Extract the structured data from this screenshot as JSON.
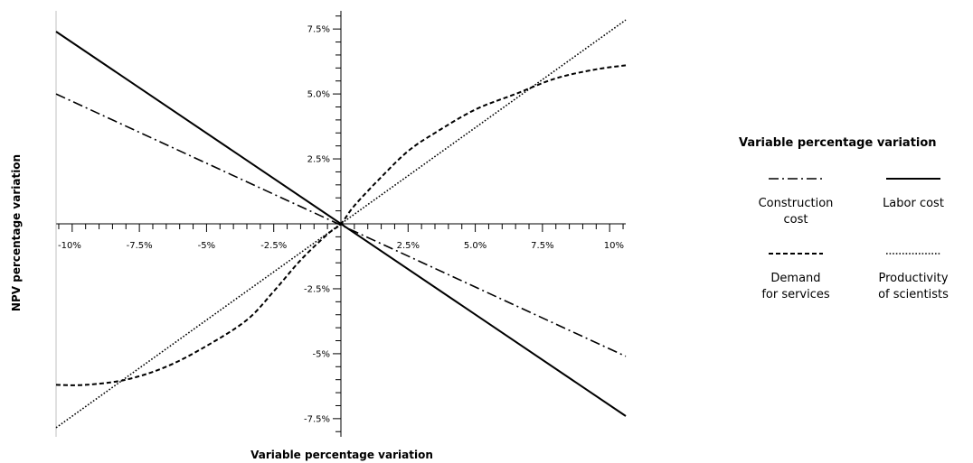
{
  "chart_data": {
    "type": "line",
    "xlabel": "Variable percentage variation",
    "ylabel": "NPV percentage variation",
    "xlim": [
      -10.6,
      10.6
    ],
    "ylim": [
      -8.2,
      8.2
    ],
    "grid": false,
    "legend_position": "right",
    "x_ticks": {
      "values": [
        -10,
        -7.5,
        -5,
        -2.5,
        2.5,
        5,
        7.5,
        10
      ],
      "labels": [
        "-10%",
        "-7.5%",
        "-5%",
        "-2.5%",
        "2.5%",
        "5.0%",
        "7.5%",
        "10%"
      ]
    },
    "y_ticks": {
      "values": [
        7.5,
        5,
        2.5,
        -2.5,
        -5,
        -7.5
      ],
      "labels": [
        "7.5%",
        "5.0%",
        "2.5%",
        "-2.5%",
        "-5%",
        "-7.5%"
      ]
    },
    "legend": {
      "title": "Variable percentage variation"
    },
    "series": [
      {
        "name": "Construction cost",
        "style": "dashdot",
        "x": [
          -10.6,
          10.6
        ],
        "y": [
          5.0,
          -5.1
        ]
      },
      {
        "name": "Labor cost",
        "style": "solid",
        "x": [
          -10.6,
          10.6
        ],
        "y": [
          7.4,
          -7.4
        ]
      },
      {
        "name": "Demand for services",
        "style": "dashed",
        "x": [
          -10.6,
          -9.5,
          -8.0,
          -6.5,
          -5.0,
          -3.5,
          -2.5,
          -1.5,
          -0.5,
          0,
          0.5,
          1.5,
          2.5,
          3.5,
          5.0,
          6.5,
          8.0,
          9.5,
          10.6
        ],
        "y": [
          -6.2,
          -6.2,
          -6.0,
          -5.5,
          -4.7,
          -3.7,
          -2.6,
          -1.4,
          -0.4,
          0,
          0.7,
          1.8,
          2.8,
          3.5,
          4.4,
          5.0,
          5.6,
          5.95,
          6.1
        ]
      },
      {
        "name": "Productivity of scientists",
        "style": "dotted",
        "x": [
          -10.6,
          10.6
        ],
        "y": [
          -7.85,
          7.85
        ]
      }
    ],
    "legend_layout": [
      {
        "series": "Construction cost",
        "lines": [
          "Construction",
          "cost"
        ]
      },
      {
        "series": "Labor cost",
        "lines": [
          "Labor cost"
        ]
      },
      {
        "series": "Demand for services",
        "lines": [
          "Demand",
          "for services"
        ]
      },
      {
        "series": "Productivity of scientists",
        "lines": [
          "Productivity",
          "of scientists"
        ]
      }
    ]
  }
}
